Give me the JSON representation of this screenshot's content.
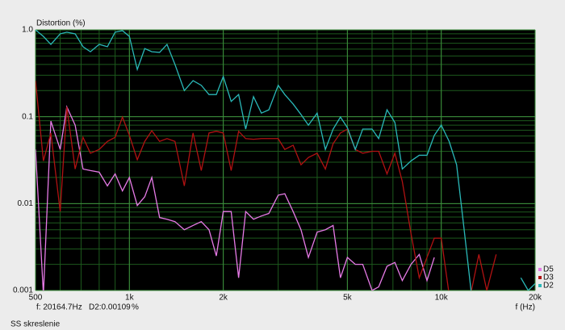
{
  "chart_data": {
    "type": "line",
    "title": "Distortion (%)",
    "x_label": "f (Hz)",
    "log_x": true,
    "log_y": true,
    "grid": true,
    "legend": "bottom-right",
    "xlim": [
      500,
      20000
    ],
    "ylim": [
      0.001,
      1
    ],
    "xticks": [
      500,
      {
        "value": 1000,
        "label": "1k"
      },
      {
        "value": 2000,
        "label": "2k"
      },
      {
        "value": 5000,
        "label": "5k"
      },
      {
        "value": 10000,
        "label": "10k"
      },
      {
        "value": 20000,
        "label": "20k"
      }
    ],
    "yticks": [
      {
        "value": 1,
        "label": "1.0"
      },
      0.1,
      0.01,
      0.001
    ],
    "x": [
      500,
      530,
      560,
      600,
      630,
      670,
      710,
      750,
      800,
      850,
      900,
      950,
      1000,
      1060,
      1120,
      1180,
      1250,
      1320,
      1400,
      1500,
      1600,
      1700,
      1800,
      1900,
      2000,
      2120,
      2240,
      2360,
      2500,
      2650,
      2800,
      3000,
      3150,
      3350,
      3550,
      3750,
      4000,
      4250,
      4500,
      4750,
      5000,
      5300,
      5600,
      6000,
      6300,
      6700,
      7100,
      7500,
      8000,
      8500,
      9000,
      9500,
      10000,
      10600,
      11200,
      11800,
      12500,
      13200,
      14000,
      15000,
      16000,
      17000,
      18000,
      19000,
      20000
    ],
    "series": [
      {
        "name": "D5",
        "color": "#e67ae6",
        "values": [
          0.042,
          0.0009,
          0.089,
          0.042,
          0.13,
          0.08,
          0.025,
          0.024,
          0.023,
          0.016,
          0.022,
          0.014,
          0.02,
          0.0095,
          0.012,
          0.02,
          0.0069,
          0.0066,
          0.0062,
          0.005,
          0.0056,
          0.0062,
          0.005,
          0.0025,
          0.0081,
          0.0081,
          0.0014,
          0.0081,
          0.0066,
          0.0072,
          0.0077,
          0.0125,
          0.013,
          0.0081,
          0.005,
          0.0024,
          0.0047,
          0.005,
          0.0056,
          0.0014,
          0.0024,
          0.002,
          0.002,
          0.001,
          0.0011,
          0.0019,
          0.0021,
          0.0013,
          0.002,
          0.0026,
          0.0013,
          0.0024,
          null,
          null,
          null,
          null,
          null,
          null,
          null,
          null,
          null,
          null,
          null,
          null,
          null
        ]
      },
      {
        "name": "D3",
        "color": "#b01212",
        "values": [
          0.26,
          0.031,
          0.065,
          0.0081,
          0.13,
          0.025,
          0.058,
          0.038,
          0.042,
          0.052,
          0.058,
          0.099,
          0.061,
          0.032,
          0.052,
          0.069,
          0.052,
          0.056,
          0.052,
          0.016,
          0.065,
          0.024,
          0.065,
          0.068,
          0.065,
          0.024,
          0.068,
          0.056,
          0.055,
          0.056,
          0.056,
          0.056,
          0.042,
          0.047,
          0.028,
          0.034,
          0.038,
          0.025,
          0.049,
          0.065,
          0.072,
          0.042,
          0.038,
          0.04,
          0.04,
          0.022,
          0.038,
          0.018,
          0.0045,
          0.0014,
          0.0024,
          0.004,
          0.004,
          0.0009,
          null,
          null,
          0.001,
          0.0026,
          0.001,
          0.0026,
          null,
          null,
          null,
          null,
          null
        ]
      },
      {
        "name": "D2",
        "color": "#2ab8b8",
        "values": [
          1,
          0.84,
          0.68,
          0.9,
          0.94,
          0.9,
          0.64,
          0.56,
          0.68,
          0.64,
          0.94,
          0.98,
          0.84,
          0.35,
          0.61,
          0.56,
          0.55,
          0.68,
          0.4,
          0.2,
          0.26,
          0.23,
          0.18,
          0.18,
          0.29,
          0.15,
          0.18,
          0.072,
          0.17,
          0.11,
          0.12,
          0.23,
          0.18,
          0.14,
          0.106,
          0.08,
          0.11,
          0.042,
          0.072,
          0.099,
          0.075,
          0.042,
          0.072,
          0.072,
          0.056,
          0.12,
          0.086,
          0.025,
          0.031,
          0.036,
          0.036,
          0.061,
          0.08,
          0.052,
          0.028,
          0.0056,
          0.0009,
          null,
          null,
          null,
          null,
          null,
          0.0014,
          0.001,
          0.0012
        ]
      }
    ],
    "annotations": [
      "f: 20164.7Hz",
      "D2:0.00109",
      "%",
      "SS skreslenie"
    ]
  }
}
